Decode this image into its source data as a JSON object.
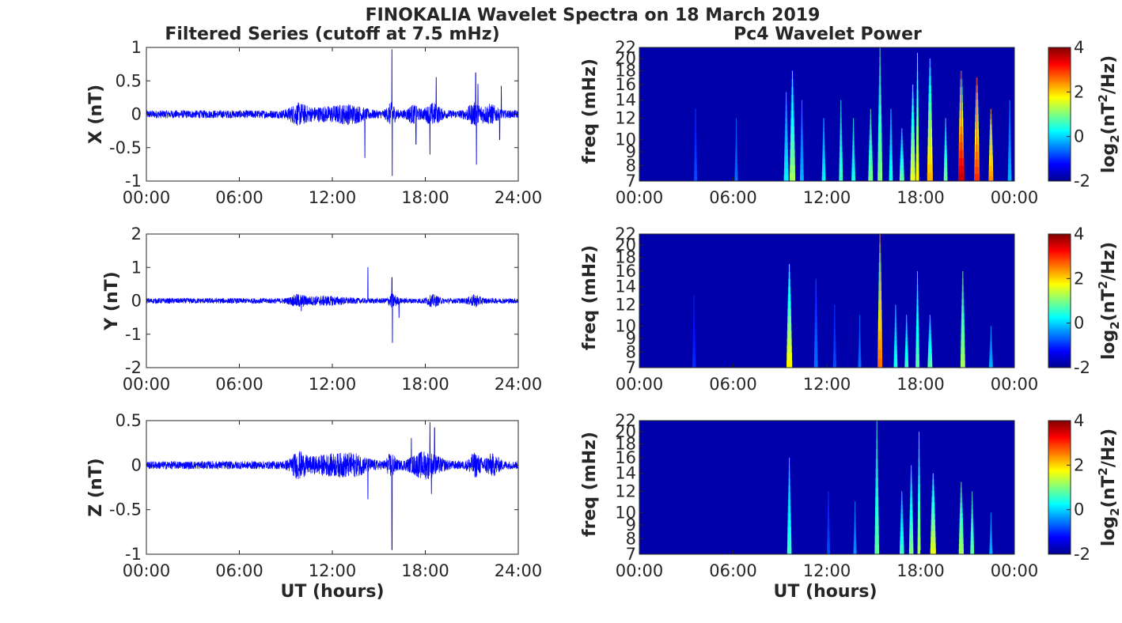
{
  "figure": {
    "title": "FINOKALIA Wavelet Spectra on 18 March 2019",
    "left_title": "Filtered Series (cutoff at 7.5 mHz)",
    "right_title": "Pc4 Wavelet Power",
    "x_label": "UT (hours)",
    "freq_label": "freq (mHz)",
    "colorbar_label_prefix": "log",
    "colorbar_label_sub": "2",
    "colorbar_label_mid": "(nT",
    "colorbar_label_sup": "2",
    "colorbar_label_suffix": "/Hz)"
  },
  "chart_data": [
    {
      "type": "line",
      "title": "Filtered Series (cutoff at 7.5 mHz)",
      "ylabel": "X (nT)",
      "xlabel": "",
      "xlim": [
        0,
        24
      ],
      "ylim": [
        -1,
        1
      ],
      "xticks": [
        "00:00",
        "06:00",
        "12:00",
        "18:00",
        "24:00"
      ],
      "yticks": [
        "1",
        "0.5",
        "0",
        "-0.5",
        "-1"
      ],
      "yticks_values": [
        1,
        0.5,
        0,
        -0.5,
        -1
      ],
      "color": "#0000ff",
      "base_amplitude": 0.06,
      "bursts": [
        [
          9.8,
          0.6,
          0.1
        ],
        [
          11.5,
          1.5,
          0.06
        ],
        [
          13.2,
          1.0,
          0.08
        ],
        [
          15.8,
          0.3,
          0.12
        ],
        [
          17.2,
          0.4,
          0.09
        ],
        [
          18.5,
          0.5,
          0.12
        ],
        [
          21.2,
          0.5,
          0.12
        ],
        [
          22.2,
          0.5,
          0.1
        ]
      ],
      "spikes": [
        [
          15.85,
          0.97
        ],
        [
          15.87,
          -0.92
        ],
        [
          14.1,
          -0.65
        ],
        [
          18.3,
          -0.6
        ],
        [
          17.4,
          -0.45
        ],
        [
          18.7,
          0.55
        ],
        [
          21.25,
          0.62
        ],
        [
          21.3,
          -0.75
        ],
        [
          21.4,
          0.45
        ],
        [
          22.8,
          -0.38
        ],
        [
          22.9,
          0.42
        ]
      ]
    },
    {
      "type": "line",
      "title": "",
      "ylabel": "Y (nT)",
      "xlabel": "",
      "xlim": [
        0,
        24
      ],
      "ylim": [
        -2,
        2
      ],
      "xticks": [
        "00:00",
        "06:00",
        "12:00",
        "18:00",
        "24:00"
      ],
      "yticks": [
        "2",
        "1",
        "0",
        "-1",
        "-2"
      ],
      "yticks_values": [
        2,
        1,
        0,
        -1,
        -2
      ],
      "color": "#0000ff",
      "base_amplitude": 0.08,
      "bursts": [
        [
          9.8,
          0.5,
          0.12
        ],
        [
          11.5,
          1.4,
          0.08
        ],
        [
          15.9,
          0.3,
          0.15
        ],
        [
          18.5,
          0.4,
          0.12
        ],
        [
          21.2,
          0.4,
          0.12
        ]
      ],
      "spikes": [
        [
          14.3,
          1.0
        ],
        [
          15.85,
          0.7
        ],
        [
          15.88,
          -1.25
        ],
        [
          10.0,
          -0.3
        ],
        [
          16.3,
          -0.5
        ]
      ]
    },
    {
      "type": "line",
      "title": "",
      "ylabel": "Z (nT)",
      "xlabel": "UT (hours)",
      "xlim": [
        0,
        24
      ],
      "ylim": [
        -1,
        0.5
      ],
      "xticks": [
        "00:00",
        "06:00",
        "12:00",
        "18:00",
        "24:00"
      ],
      "yticks": [
        "0.5",
        "0",
        "-0.5",
        "-1"
      ],
      "yticks_values": [
        0.5,
        0,
        -0.5,
        -1
      ],
      "color": "#0000ff",
      "base_amplitude": 0.045,
      "bursts": [
        [
          9.8,
          0.5,
          0.1
        ],
        [
          11.5,
          1.5,
          0.07
        ],
        [
          13.3,
          1.2,
          0.08
        ],
        [
          15.8,
          0.3,
          0.1
        ],
        [
          18.0,
          1.0,
          0.12
        ],
        [
          21.2,
          0.4,
          0.1
        ],
        [
          22.3,
          0.5,
          0.09
        ]
      ],
      "spikes": [
        [
          15.85,
          -0.95
        ],
        [
          14.3,
          -0.38
        ],
        [
          17.1,
          0.3
        ],
        [
          18.3,
          0.48
        ],
        [
          18.6,
          0.42
        ],
        [
          18.4,
          -0.32
        ]
      ]
    },
    {
      "type": "heatmap",
      "title": "Pc4 Wavelet Power",
      "ylabel": "freq (mHz)",
      "xlabel": "",
      "xlim": [
        0,
        24
      ],
      "ylim": [
        7,
        22
      ],
      "xticks": [
        "00:00",
        "06:00",
        "12:00",
        "18:00",
        "00:00"
      ],
      "yticks": [
        "22",
        "20",
        "18",
        "16",
        "14",
        "12",
        "10",
        "9",
        "8",
        "7"
      ],
      "yticks_values": [
        22,
        20,
        18,
        16,
        14,
        12,
        10,
        9,
        8,
        7
      ],
      "colorbar": {
        "colormap": "jet",
        "range": [
          -2,
          4
        ],
        "ticks": [
          "4",
          "2",
          "0",
          "-2"
        ],
        "ticks_values": [
          4,
          2,
          0,
          -2
        ]
      },
      "streaks": [
        [
          3.6,
          0.1,
          13,
          -0.8
        ],
        [
          6.2,
          0.1,
          12,
          -0.6
        ],
        [
          9.4,
          0.15,
          15,
          0.2
        ],
        [
          9.8,
          0.18,
          18,
          1.2
        ],
        [
          10.4,
          0.12,
          14,
          -0.2
        ],
        [
          11.8,
          0.12,
          12,
          0.2
        ],
        [
          12.9,
          0.12,
          14,
          0.6
        ],
        [
          13.7,
          0.12,
          12,
          0.4
        ],
        [
          14.8,
          0.15,
          13,
          0.9
        ],
        [
          15.4,
          0.15,
          22,
          1.0
        ],
        [
          16.1,
          0.12,
          13,
          0.4
        ],
        [
          16.8,
          0.15,
          11,
          0.8
        ],
        [
          17.5,
          0.16,
          16,
          1.6
        ],
        [
          17.8,
          0.1,
          21,
          1.8
        ],
        [
          18.6,
          0.18,
          20,
          2.2
        ],
        [
          19.6,
          0.12,
          12,
          0.9
        ],
        [
          20.6,
          0.2,
          18,
          3.6
        ],
        [
          21.6,
          0.18,
          17,
          3.0
        ],
        [
          22.5,
          0.15,
          13,
          2.4
        ],
        [
          23.7,
          0.12,
          14,
          -0.2
        ]
      ]
    },
    {
      "type": "heatmap",
      "title": "",
      "ylabel": "freq (mHz)",
      "xlabel": "",
      "xlim": [
        0,
        24
      ],
      "ylim": [
        7,
        22
      ],
      "xticks": [
        "00:00",
        "06:00",
        "12:00",
        "18:00",
        "00:00"
      ],
      "yticks": [
        "22",
        "20",
        "18",
        "16",
        "14",
        "12",
        "10",
        "9",
        "8",
        "7"
      ],
      "yticks_values": [
        22,
        20,
        18,
        16,
        14,
        12,
        10,
        9,
        8,
        7
      ],
      "colorbar": {
        "colormap": "jet",
        "range": [
          -2,
          4
        ],
        "ticks": [
          "4",
          "2",
          "0",
          "-2"
        ],
        "ticks_values": [
          4,
          2,
          0,
          -2
        ]
      },
      "streaks": [
        [
          3.5,
          0.1,
          13,
          -1.0
        ],
        [
          9.6,
          0.18,
          17,
          1.8
        ],
        [
          11.3,
          0.12,
          15,
          -0.6
        ],
        [
          12.5,
          0.1,
          12,
          -0.8
        ],
        [
          14.1,
          0.1,
          11,
          -0.6
        ],
        [
          15.4,
          0.15,
          22,
          2.6
        ],
        [
          16.4,
          0.12,
          12,
          0.4
        ],
        [
          17.1,
          0.12,
          11,
          0.6
        ],
        [
          17.8,
          0.12,
          16,
          0.8
        ],
        [
          18.6,
          0.15,
          11,
          0.8
        ],
        [
          20.7,
          0.15,
          16,
          1.2
        ],
        [
          22.5,
          0.12,
          10,
          -0.2
        ]
      ]
    },
    {
      "type": "heatmap",
      "title": "",
      "ylabel": "freq (mHz)",
      "xlabel": "UT (hours)",
      "xlim": [
        0,
        24
      ],
      "ylim": [
        7,
        22
      ],
      "xticks": [
        "00:00",
        "06:00",
        "12:00",
        "18:00",
        "00:00"
      ],
      "yticks": [
        "22",
        "20",
        "18",
        "16",
        "14",
        "12",
        "10",
        "9",
        "8",
        "7"
      ],
      "yticks_values": [
        22,
        20,
        18,
        16,
        14,
        12,
        10,
        9,
        8,
        7
      ],
      "colorbar": {
        "colormap": "jet",
        "range": [
          -2,
          4
        ],
        "ticks": [
          "4",
          "2",
          "0",
          "-2"
        ],
        "ticks_values": [
          4,
          2,
          0,
          -2
        ]
      },
      "streaks": [
        [
          9.6,
          0.14,
          16,
          0.6
        ],
        [
          12.1,
          0.1,
          12,
          -0.8
        ],
        [
          13.8,
          0.1,
          11,
          -0.4
        ],
        [
          15.2,
          0.14,
          22,
          0.8
        ],
        [
          16.8,
          0.14,
          12,
          0.6
        ],
        [
          17.4,
          0.14,
          15,
          1.0
        ],
        [
          17.9,
          0.1,
          20,
          1.2
        ],
        [
          18.8,
          0.18,
          14,
          1.6
        ],
        [
          20.6,
          0.16,
          13,
          1.2
        ],
        [
          21.3,
          0.12,
          12,
          0.8
        ],
        [
          22.5,
          0.1,
          10,
          -0.2
        ]
      ]
    }
  ]
}
